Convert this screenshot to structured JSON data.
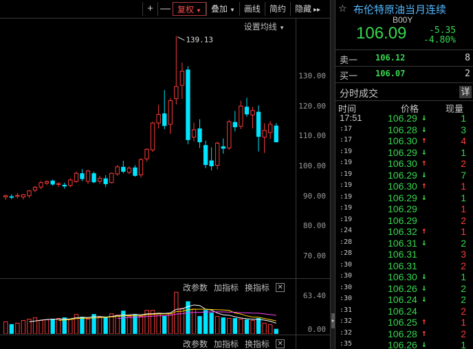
{
  "toolbar": {
    "plus": "+",
    "minus": "—",
    "adjust": "复权",
    "overlay": "叠加",
    "draw": "画线",
    "simple": "简约",
    "hide": "隐藏",
    "forward": "▸▸"
  },
  "ma_settings": "设置均线",
  "price_axis": [
    "130.00",
    "120.00",
    "110.00",
    "100.00",
    "90.00",
    "80.00",
    "70.00"
  ],
  "max_annotation": "139.13",
  "volume_axis": {
    "top": "63.40",
    "bottom": "0.00"
  },
  "indicator_bar": {
    "edit_params": "改参数",
    "add_indicator": "加指标",
    "switch_indicator": "换指标",
    "close": "✕"
  },
  "colors": {
    "up": "#ff3b3b",
    "down": "#37d850",
    "candle_down": "#00e5ff",
    "title": "#53b8ff",
    "ma5": "#ffffff",
    "ma10": "#ffd700",
    "ma20": "#ff44ff"
  },
  "chart_data": {
    "type": "candlestick",
    "ylim": [
      65,
      141
    ],
    "candles": [
      {
        "o": 88.9,
        "h": 89.6,
        "l": 88.0,
        "c": 89.3
      },
      {
        "o": 89.0,
        "h": 89.7,
        "l": 88.2,
        "c": 88.8
      },
      {
        "o": 89.1,
        "h": 90.2,
        "l": 88.5,
        "c": 89.4
      },
      {
        "o": 88.9,
        "h": 89.8,
        "l": 88.1,
        "c": 89.6
      },
      {
        "o": 89.3,
        "h": 91.1,
        "l": 88.6,
        "c": 90.8
      },
      {
        "o": 91.0,
        "h": 92.3,
        "l": 90.4,
        "c": 91.9
      },
      {
        "o": 92.0,
        "h": 93.9,
        "l": 91.3,
        "c": 93.4
      },
      {
        "o": 93.2,
        "h": 94.1,
        "l": 92.6,
        "c": 93.7
      },
      {
        "o": 93.9,
        "h": 94.3,
        "l": 92.4,
        "c": 92.9
      },
      {
        "o": 92.8,
        "h": 93.5,
        "l": 92.0,
        "c": 93.1
      },
      {
        "o": 92.6,
        "h": 93.4,
        "l": 91.5,
        "c": 92.3
      },
      {
        "o": 92.5,
        "h": 94.8,
        "l": 92.0,
        "c": 94.2
      },
      {
        "o": 93.7,
        "h": 96.8,
        "l": 93.3,
        "c": 96.3
      },
      {
        "o": 96.2,
        "h": 97.6,
        "l": 93.8,
        "c": 94.6
      },
      {
        "o": 93.8,
        "h": 97.4,
        "l": 93.0,
        "c": 97.0
      },
      {
        "o": 96.2,
        "h": 96.8,
        "l": 93.2,
        "c": 93.6
      },
      {
        "o": 93.8,
        "h": 95.5,
        "l": 93.0,
        "c": 94.7
      },
      {
        "o": 94.6,
        "h": 95.7,
        "l": 92.0,
        "c": 93.0
      },
      {
        "o": 93.4,
        "h": 96.5,
        "l": 93.1,
        "c": 96.3
      },
      {
        "o": 96.1,
        "h": 98.9,
        "l": 95.5,
        "c": 98.3
      },
      {
        "o": 98.2,
        "h": 100.2,
        "l": 96.3,
        "c": 96.9
      },
      {
        "o": 96.6,
        "h": 98.5,
        "l": 96.0,
        "c": 97.9
      },
      {
        "o": 98.0,
        "h": 98.8,
        "l": 95.2,
        "c": 95.6
      },
      {
        "o": 95.8,
        "h": 101.0,
        "l": 95.0,
        "c": 100.6
      },
      {
        "o": 100.8,
        "h": 104.1,
        "l": 100.0,
        "c": 103.8
      },
      {
        "o": 103.6,
        "h": 112.4,
        "l": 103.0,
        "c": 112.0
      },
      {
        "o": 112.0,
        "h": 117.7,
        "l": 110.3,
        "c": 114.7
      },
      {
        "o": 114.9,
        "h": 122.3,
        "l": 110.1,
        "c": 111.2
      },
      {
        "o": 111.6,
        "h": 119.8,
        "l": 108.6,
        "c": 119.0
      },
      {
        "o": 119.6,
        "h": 139.13,
        "l": 117.8,
        "c": 123.4
      },
      {
        "o": 123.8,
        "h": 130.9,
        "l": 119.5,
        "c": 128.2
      },
      {
        "o": 128.6,
        "h": 129.8,
        "l": 105.4,
        "c": 106.8
      },
      {
        "o": 107.6,
        "h": 112.1,
        "l": 106.3,
        "c": 109.9
      },
      {
        "o": 110.2,
        "h": 113.2,
        "l": 104.2,
        "c": 106.1
      },
      {
        "o": 105.0,
        "h": 106.5,
        "l": 97.9,
        "c": 99.0
      },
      {
        "o": 100.2,
        "h": 104.4,
        "l": 97.2,
        "c": 98.6
      },
      {
        "o": 98.8,
        "h": 106.2,
        "l": 97.5,
        "c": 105.7
      },
      {
        "o": 104.6,
        "h": 107.2,
        "l": 102.4,
        "c": 104.1
      },
      {
        "o": 104.2,
        "h": 113.0,
        "l": 103.6,
        "c": 112.4
      },
      {
        "o": 112.2,
        "h": 115.8,
        "l": 109.4,
        "c": 110.8
      },
      {
        "o": 111.0,
        "h": 119.0,
        "l": 110.1,
        "c": 117.3
      },
      {
        "o": 117.0,
        "h": 119.9,
        "l": 114.0,
        "c": 114.8
      },
      {
        "o": 114.5,
        "h": 117.0,
        "l": 110.3,
        "c": 115.9
      },
      {
        "o": 115.4,
        "h": 117.5,
        "l": 103.1,
        "c": 107.8
      },
      {
        "o": 107.6,
        "h": 111.9,
        "l": 102.6,
        "c": 109.7
      },
      {
        "o": 109.0,
        "h": 112.6,
        "l": 107.0,
        "c": 111.6
      },
      {
        "o": 111.1,
        "h": 112.0,
        "l": 106.0,
        "c": 106.1
      }
    ],
    "volume": [
      {
        "v": 18,
        "up": true
      },
      {
        "v": 14,
        "up": false
      },
      {
        "v": 16,
        "up": true
      },
      {
        "v": 20,
        "up": true
      },
      {
        "v": 22,
        "up": true
      },
      {
        "v": 24,
        "up": true
      },
      {
        "v": 20,
        "up": true
      },
      {
        "v": 21,
        "up": true
      },
      {
        "v": 22,
        "up": false
      },
      {
        "v": 23,
        "up": true
      },
      {
        "v": 24,
        "up": false
      },
      {
        "v": 22,
        "up": true
      },
      {
        "v": 29,
        "up": true
      },
      {
        "v": 25,
        "up": false
      },
      {
        "v": 22,
        "up": true
      },
      {
        "v": 29,
        "up": false
      },
      {
        "v": 25,
        "up": true
      },
      {
        "v": 24,
        "up": false
      },
      {
        "v": 30,
        "up": true
      },
      {
        "v": 28,
        "up": true
      },
      {
        "v": 34,
        "up": false
      },
      {
        "v": 26,
        "up": true
      },
      {
        "v": 28,
        "up": false
      },
      {
        "v": 26,
        "up": true
      },
      {
        "v": 35,
        "up": true
      },
      {
        "v": 35,
        "up": true
      },
      {
        "v": 30,
        "up": true
      },
      {
        "v": 26,
        "up": false
      },
      {
        "v": 30,
        "up": true
      },
      {
        "v": 62,
        "up": true
      },
      {
        "v": 38,
        "up": true
      },
      {
        "v": 48,
        "up": false
      },
      {
        "v": 37,
        "up": true
      },
      {
        "v": 26,
        "up": false
      },
      {
        "v": 35,
        "up": false
      },
      {
        "v": 31,
        "up": false
      },
      {
        "v": 26,
        "up": true
      },
      {
        "v": 24,
        "up": false
      },
      {
        "v": 23,
        "up": true
      },
      {
        "v": 23,
        "up": false
      },
      {
        "v": 22,
        "up": true
      },
      {
        "v": 21,
        "up": false
      },
      {
        "v": 20,
        "up": true
      },
      {
        "v": 23,
        "up": false
      },
      {
        "v": 16,
        "up": true
      },
      {
        "v": 14,
        "up": true
      },
      {
        "v": 7,
        "up": false
      }
    ],
    "volume_ylim": [
      0,
      63.4
    ]
  },
  "quote": {
    "title": "布伦特原油当月连续",
    "star": "☆",
    "code": "B00Y",
    "price": "106.09",
    "change": "-5.35",
    "change_pct": "-4.80%",
    "ask_label": "卖一",
    "ask_price": "106.12",
    "ask_qty": "8",
    "bid_label": "买一",
    "bid_price": "106.07",
    "bid_qty": "2",
    "tick_title": "分时成交",
    "detail": "详",
    "col_time": "时间",
    "col_price": "价格",
    "col_volume": "现量"
  },
  "ticks": [
    {
      "time": "17:51",
      "price": "106.29",
      "dir": "down",
      "vol": "1"
    },
    {
      "time": ":17",
      "price": "106.28",
      "dir": "down",
      "vol": "3"
    },
    {
      "time": ":17",
      "price": "106.30",
      "dir": "up",
      "vol": "4"
    },
    {
      "time": ":19",
      "price": "106.29",
      "dir": "down",
      "vol": "1"
    },
    {
      "time": ":19",
      "price": "106.30",
      "dir": "up",
      "vol": "2"
    },
    {
      "time": ":19",
      "price": "106.29",
      "dir": "down",
      "vol": "7"
    },
    {
      "time": ":19",
      "price": "106.30",
      "dir": "up",
      "vol": "1"
    },
    {
      "time": ":19",
      "price": "106.29",
      "dir": "down",
      "vol": "1"
    },
    {
      "time": ":19",
      "price": "106.29",
      "dir": "",
      "vol": "1"
    },
    {
      "time": ":19",
      "price": "106.29",
      "dir": "",
      "vol": "2"
    },
    {
      "time": ":24",
      "price": "106.32",
      "dir": "up",
      "vol": "1"
    },
    {
      "time": ":28",
      "price": "106.31",
      "dir": "down",
      "vol": "2"
    },
    {
      "time": ":28",
      "price": "106.31",
      "dir": "",
      "vol": "3"
    },
    {
      "time": ":30",
      "price": "106.31",
      "dir": "",
      "vol": "2"
    },
    {
      "time": ":30",
      "price": "106.30",
      "dir": "down",
      "vol": "1"
    },
    {
      "time": ":30",
      "price": "106.26",
      "dir": "down",
      "vol": "2"
    },
    {
      "time": ":30",
      "price": "106.24",
      "dir": "down",
      "vol": "2"
    },
    {
      "time": ":31",
      "price": "106.24",
      "dir": "",
      "vol": "2"
    },
    {
      "time": ":32",
      "price": "106.25",
      "dir": "up",
      "vol": "1"
    },
    {
      "time": ":32",
      "price": "106.28",
      "dir": "up",
      "vol": "2"
    },
    {
      "time": ":35",
      "price": "106.26",
      "dir": "down",
      "vol": "1"
    }
  ]
}
